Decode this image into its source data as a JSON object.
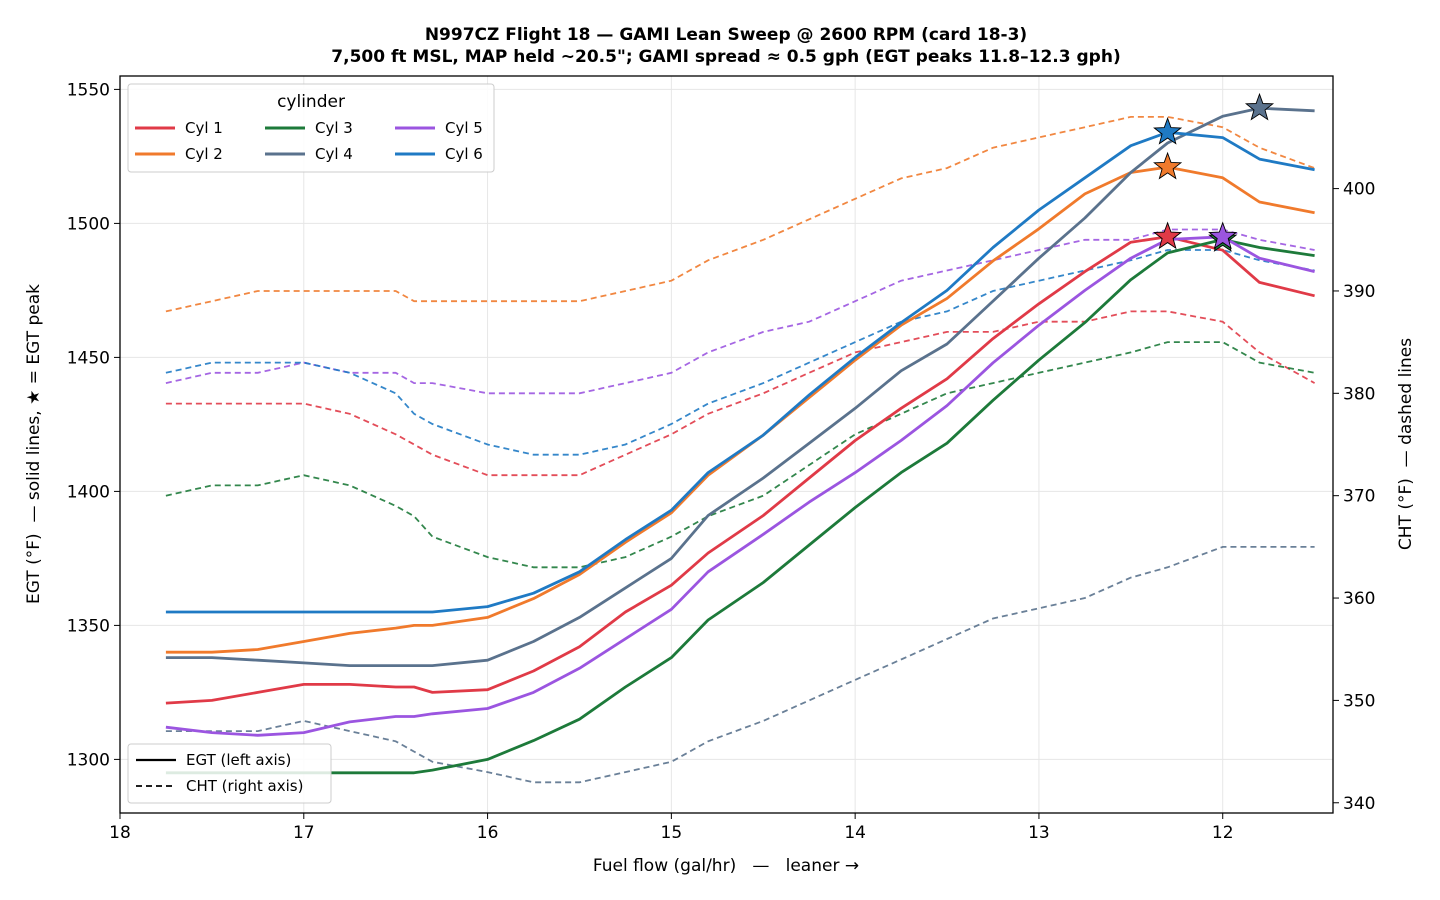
{
  "chart_data": {
    "type": "line",
    "title": "N997CZ Flight 18 — GAMI Lean Sweep @ 2600 RPM (card 18-3)",
    "subtitle": "7,500 ft MSL, MAP held ~20.5\"; GAMI spread ≈ 0.5 gph (EGT peaks 11.8–12.3 gph)",
    "xlabel": "Fuel flow (gal/hr)   —   leaner →",
    "ylabel_left": "EGT (°F)  — solid lines, ★ = EGT peak",
    "ylabel_right": "CHT (°F)  — dashed lines",
    "xlim": [
      18.0,
      11.4
    ],
    "x_inverted": true,
    "ylim_left": [
      1280,
      1555
    ],
    "ylim_right": [
      339,
      411
    ],
    "x_ticks": [
      18,
      17,
      16,
      15,
      14,
      13,
      12
    ],
    "y_ticks_left": [
      1300,
      1350,
      1400,
      1450,
      1500,
      1550
    ],
    "y_ticks_right": [
      340,
      350,
      360,
      370,
      380,
      390,
      400
    ],
    "grid": true,
    "legend_title": "cylinder",
    "legend_placement": "top-left",
    "style_legend_placement": "bottom-left",
    "style_legend": [
      {
        "label": "EGT (left axis)",
        "dash": "solid"
      },
      {
        "label": "CHT (right axis)",
        "dash": "dashed"
      }
    ],
    "x": [
      17.75,
      17.5,
      17.25,
      17.0,
      16.75,
      16.5,
      16.4,
      16.3,
      16.0,
      15.75,
      15.5,
      15.25,
      15.0,
      14.8,
      14.5,
      14.25,
      14.0,
      13.75,
      13.5,
      13.25,
      13.0,
      12.75,
      12.5,
      12.3,
      12.0,
      11.8,
      11.5
    ],
    "series": [
      {
        "name": "Cyl 1",
        "color": "#e03a47",
        "egt": [
          1321,
          1322,
          1325,
          1328,
          1328,
          1327,
          1327,
          1325,
          1326,
          1333,
          1342,
          1355,
          1365,
          1377,
          1391,
          1405,
          1419,
          1431,
          1442,
          1457,
          1470,
          1482,
          1493,
          1495,
          1490,
          1478,
          1473
        ],
        "cht": [
          379,
          379,
          379,
          379,
          378,
          376,
          375,
          374,
          372,
          372,
          372,
          374,
          376,
          378,
          380,
          382,
          384,
          385,
          386,
          386,
          387,
          387,
          388,
          388,
          387,
          384,
          381
        ],
        "peak_x": 12.3,
        "peak_egt": 1495
      },
      {
        "name": "Cyl 2",
        "color": "#f07a2c",
        "egt": [
          1340,
          1340,
          1341,
          1344,
          1347,
          1349,
          1350,
          1350,
          1353,
          1360,
          1369,
          1381,
          1392,
          1406,
          1421,
          1435,
          1449,
          1462,
          1472,
          1486,
          1498,
          1511,
          1519,
          1521,
          1517,
          1508,
          1504
        ],
        "cht": [
          388,
          389,
          390,
          390,
          390,
          390,
          389,
          389,
          389,
          389,
          389,
          390,
          391,
          393,
          395,
          397,
          399,
          401,
          402,
          404,
          405,
          406,
          407,
          407,
          406,
          404,
          402
        ],
        "peak_x": 12.3,
        "peak_egt": 1521
      },
      {
        "name": "Cyl 3",
        "color": "#1d7a3a",
        "egt": [
          1295,
          1295,
          1295,
          1295,
          1295,
          1295,
          1295,
          1296,
          1300,
          1307,
          1315,
          1327,
          1338,
          1352,
          1366,
          1380,
          1394,
          1407,
          1418,
          1434,
          1449,
          1463,
          1479,
          1489,
          1494,
          1491,
          1488
        ],
        "cht": [
          370,
          371,
          371,
          372,
          371,
          369,
          368,
          366,
          364,
          363,
          363,
          364,
          366,
          368,
          370,
          373,
          376,
          378,
          380,
          381,
          382,
          383,
          384,
          385,
          385,
          383,
          382
        ],
        "peak_x": 12.0,
        "peak_egt": 1494
      },
      {
        "name": "Cyl 4",
        "color": "#5a728d",
        "egt": [
          1338,
          1338,
          1337,
          1336,
          1335,
          1335,
          1335,
          1335,
          1337,
          1344,
          1353,
          1364,
          1375,
          1391,
          1405,
          1418,
          1431,
          1445,
          1455,
          1471,
          1487,
          1502,
          1519,
          1530,
          1540,
          1543,
          1542
        ],
        "cht": [
          347,
          347,
          347,
          348,
          347,
          346,
          345,
          344,
          343,
          342,
          342,
          343,
          344,
          346,
          348,
          350,
          352,
          354,
          356,
          358,
          359,
          360,
          362,
          363,
          365,
          365,
          365
        ],
        "peak_x": 11.8,
        "peak_egt": 1543
      },
      {
        "name": "Cyl 5",
        "color": "#9b55e0",
        "egt": [
          1312,
          1310,
          1309,
          1310,
          1314,
          1316,
          1316,
          1317,
          1319,
          1325,
          1334,
          1345,
          1356,
          1370,
          1384,
          1396,
          1407,
          1419,
          1432,
          1448,
          1462,
          1475,
          1487,
          1494,
          1495,
          1487,
          1482
        ],
        "cht": [
          381,
          382,
          382,
          383,
          382,
          382,
          381,
          381,
          380,
          380,
          380,
          381,
          382,
          384,
          386,
          387,
          389,
          391,
          392,
          393,
          394,
          395,
          395,
          396,
          396,
          395,
          394
        ],
        "peak_x": 12.0,
        "peak_egt": 1495
      },
      {
        "name": "Cyl 6",
        "color": "#1f7ac4",
        "egt": [
          1355,
          1355,
          1355,
          1355,
          1355,
          1355,
          1355,
          1355,
          1357,
          1362,
          1370,
          1382,
          1393,
          1407,
          1421,
          1436,
          1450,
          1463,
          1475,
          1491,
          1505,
          1517,
          1529,
          1534,
          1532,
          1524,
          1520
        ],
        "cht": [
          382,
          383,
          383,
          383,
          382,
          380,
          378,
          377,
          375,
          374,
          374,
          375,
          377,
          379,
          381,
          383,
          385,
          387,
          388,
          390,
          391,
          392,
          393,
          394,
          394,
          393,
          392
        ],
        "peak_x": 12.3,
        "peak_egt": 1534
      }
    ]
  }
}
